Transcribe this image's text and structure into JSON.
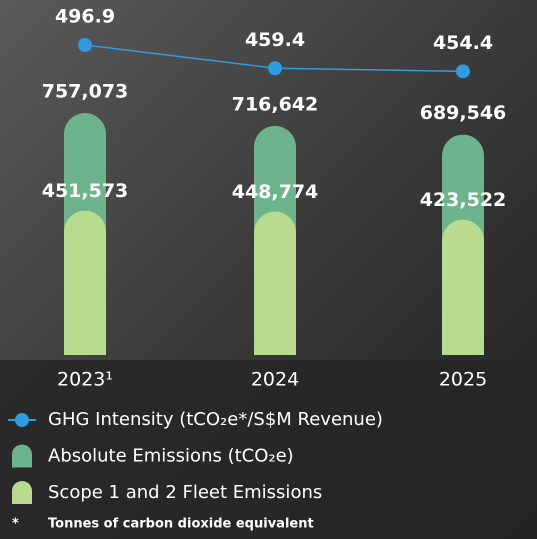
{
  "chart_data": {
    "type": "bar",
    "categories": [
      "2023¹",
      "2024",
      "2025"
    ],
    "series": [
      {
        "name": "Absolute Emissions (tCO₂e)",
        "color": "#6db38b",
        "values": [
          757073,
          716642,
          689546
        ],
        "value_labels": [
          "757,073",
          "716,642",
          "689,546"
        ]
      },
      {
        "name": "Scope 1 and 2 Fleet Emissions",
        "color": "#b8db8f",
        "values": [
          451573,
          448774,
          423522
        ],
        "value_labels": [
          "451,573",
          "448,774",
          "423,522"
        ]
      },
      {
        "name": "GHG Intensity (tCO₂e*/S$M Revenue)",
        "color": "#2f9be0",
        "type": "line",
        "values": [
          496.9,
          459.4,
          454.4
        ]
      }
    ],
    "footnote": {
      "marker": "*",
      "text": "Tonnes of carbon dioxide equivalent"
    }
  }
}
